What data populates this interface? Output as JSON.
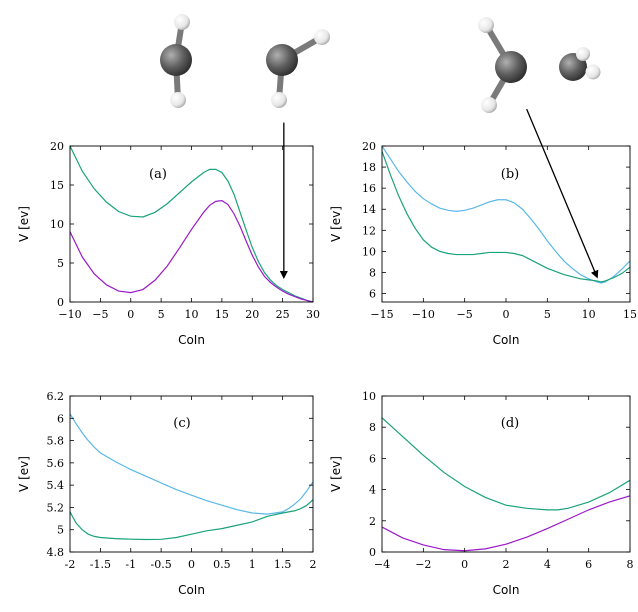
{
  "colors": {
    "green": "#1aa37a",
    "purple": "#9b19c9",
    "blue": "#5ab8e8",
    "atom_carbon": "#5f5f5f",
    "atom_hydrogen": "#f2f2f2"
  },
  "molecules": [
    {
      "name": "ethene-planar",
      "atoms": "carbon-carbon-hydrogen"
    },
    {
      "name": "ethene-twisted",
      "atoms": "carbon-carbon-hydrogen"
    }
  ],
  "chart_data": [
    {
      "type": "line",
      "label": "(a)",
      "xlabel": "CoIn",
      "ylabel": "V [ev]",
      "xlim": [
        -10,
        30
      ],
      "ylim": [
        0,
        20
      ],
      "xticks": [
        -10,
        -5,
        0,
        5,
        10,
        15,
        20,
        25,
        30
      ],
      "xtick_labels": [
        "−10",
        "−5",
        "0",
        "5",
        "10",
        "15",
        "20",
        "25",
        "30"
      ],
      "yticks": [
        0,
        5,
        10,
        15,
        20
      ],
      "ytick_labels": [
        "0",
        "5",
        "10",
        "15",
        "20"
      ],
      "arrow": {
        "from": [
          25.2,
          23.0
        ],
        "to": [
          25.2,
          3.2
        ]
      },
      "series": [
        {
          "color_key": "green",
          "x": [
            -10,
            -8,
            -6,
            -4,
            -2,
            0,
            2,
            4,
            6,
            8,
            10,
            12,
            13,
            14,
            15,
            16,
            17,
            18,
            19,
            20,
            21,
            22,
            23,
            24,
            25,
            26,
            27,
            28,
            29,
            30
          ],
          "y": [
            20.0,
            16.8,
            14.5,
            12.8,
            11.6,
            11.0,
            10.9,
            11.5,
            12.6,
            14.0,
            15.4,
            16.6,
            17.0,
            17.0,
            16.6,
            15.5,
            13.8,
            11.5,
            9.2,
            7.0,
            5.2,
            3.8,
            2.8,
            2.1,
            1.6,
            1.2,
            0.8,
            0.5,
            0.2,
            0.0
          ]
        },
        {
          "color_key": "purple",
          "x": [
            -10,
            -8,
            -6,
            -4,
            -2,
            0,
            2,
            4,
            6,
            8,
            10,
            12,
            13,
            14,
            15,
            16,
            17,
            18,
            19,
            20,
            21,
            22,
            23,
            24,
            25,
            26,
            27,
            28,
            29,
            30
          ],
          "y": [
            9.0,
            5.8,
            3.6,
            2.2,
            1.4,
            1.2,
            1.6,
            2.8,
            4.6,
            6.9,
            9.3,
            11.5,
            12.4,
            12.9,
            13.0,
            12.5,
            11.3,
            9.7,
            7.8,
            6.0,
            4.5,
            3.3,
            2.5,
            1.9,
            1.4,
            1.0,
            0.7,
            0.4,
            0.2,
            0.0
          ]
        }
      ]
    },
    {
      "type": "line",
      "label": "(b)",
      "xlabel": "CoIn",
      "ylabel": "V [ev]",
      "xlim": [
        -15,
        15
      ],
      "ylim": [
        5.2,
        20
      ],
      "xticks": [
        -15,
        -10,
        -5,
        0,
        5,
        10,
        15
      ],
      "xtick_labels": [
        "−15",
        "−10",
        "−5",
        "0",
        "5",
        "10",
        "15"
      ],
      "yticks": [
        6,
        8,
        10,
        12,
        14,
        16,
        18,
        20
      ],
      "ytick_labels": [
        "6",
        "8",
        "10",
        "12",
        "14",
        "16",
        "18",
        "20"
      ],
      "arrow": {
        "from": [
          2.5,
          23.5
        ],
        "to": [
          11.0,
          7.6
        ]
      },
      "series": [
        {
          "color_key": "blue",
          "x": [
            -15,
            -14,
            -13,
            -12,
            -11,
            -10,
            -9,
            -8,
            -7,
            -6,
            -5,
            -4,
            -3,
            -2,
            -1,
            0,
            1,
            2,
            3,
            4,
            5,
            6,
            7,
            8,
            9,
            10,
            11,
            11.5,
            12,
            13,
            14,
            15
          ],
          "y": [
            20.0,
            18.8,
            17.6,
            16.6,
            15.7,
            15.0,
            14.5,
            14.1,
            13.9,
            13.8,
            13.9,
            14.1,
            14.4,
            14.7,
            14.9,
            14.9,
            14.6,
            14.0,
            13.1,
            12.1,
            11.0,
            10.0,
            9.1,
            8.4,
            7.8,
            7.4,
            7.1,
            7.0,
            7.1,
            7.6,
            8.3,
            9.1
          ]
        },
        {
          "color_key": "green",
          "x": [
            -15,
            -14,
            -13,
            -12,
            -11,
            -10,
            -9,
            -8,
            -7,
            -6,
            -5,
            -4,
            -3,
            -2,
            -1,
            0,
            1,
            2,
            3,
            4,
            5,
            6,
            7,
            8,
            9,
            10,
            11,
            11.5,
            12,
            13,
            14,
            15
          ],
          "y": [
            19.5,
            17.3,
            15.3,
            13.6,
            12.2,
            11.1,
            10.4,
            10.0,
            9.8,
            9.7,
            9.7,
            9.7,
            9.8,
            9.9,
            9.9,
            9.9,
            9.8,
            9.6,
            9.2,
            8.8,
            8.4,
            8.1,
            7.8,
            7.6,
            7.4,
            7.3,
            7.2,
            7.1,
            7.2,
            7.5,
            7.9,
            8.5
          ]
        }
      ]
    },
    {
      "type": "line",
      "label": "(c)",
      "xlabel": "CoIn",
      "ylabel": "V [ev]",
      "xlim": [
        -2,
        2
      ],
      "ylim": [
        4.8,
        6.2
      ],
      "xticks": [
        -2,
        -1.5,
        -1,
        -0.5,
        0,
        0.5,
        1,
        1.5,
        2
      ],
      "xtick_labels": [
        "-2",
        "-1.5",
        "-1",
        "-0.5",
        "0",
        "0.5",
        "1",
        "1.5",
        "2"
      ],
      "yticks": [
        4.8,
        5.0,
        5.2,
        5.4,
        5.6,
        5.8,
        6.0,
        6.2
      ],
      "ytick_labels": [
        "4.8",
        "5",
        "5.2",
        "5.4",
        "5.6",
        "5.8",
        "6",
        "6.2"
      ],
      "series": [
        {
          "color_key": "blue",
          "x": [
            -2,
            -1.9,
            -1.8,
            -1.7,
            -1.6,
            -1.5,
            -1.25,
            -1,
            -0.75,
            -0.5,
            -0.25,
            0,
            0.25,
            0.5,
            0.75,
            1,
            1.25,
            1.5,
            1.6,
            1.7,
            1.8,
            1.9,
            2
          ],
          "y": [
            6.04,
            5.95,
            5.87,
            5.8,
            5.74,
            5.69,
            5.61,
            5.54,
            5.48,
            5.42,
            5.36,
            5.31,
            5.26,
            5.22,
            5.18,
            5.15,
            5.14,
            5.16,
            5.19,
            5.23,
            5.28,
            5.35,
            5.43
          ]
        },
        {
          "color_key": "green",
          "x": [
            -2,
            -1.9,
            -1.8,
            -1.7,
            -1.6,
            -1.5,
            -1.25,
            -1,
            -0.75,
            -0.5,
            -0.25,
            0,
            0.25,
            0.5,
            0.75,
            1,
            1.25,
            1.5,
            1.6,
            1.7,
            1.8,
            1.9,
            2
          ],
          "y": [
            5.16,
            5.06,
            5.0,
            4.96,
            4.94,
            4.93,
            4.92,
            4.915,
            4.912,
            4.914,
            4.93,
            4.96,
            4.99,
            5.01,
            5.04,
            5.07,
            5.12,
            5.15,
            5.16,
            5.17,
            5.19,
            5.22,
            5.27
          ]
        }
      ]
    },
    {
      "type": "line",
      "label": "(d)",
      "xlabel": "CoIn",
      "ylabel": "V [ev]",
      "xlim": [
        -4,
        8
      ],
      "ylim": [
        0,
        10
      ],
      "xticks": [
        -4,
        -2,
        0,
        2,
        4,
        6,
        8
      ],
      "xtick_labels": [
        "−4",
        "−2",
        "0",
        "2",
        "4",
        "6",
        "8"
      ],
      "yticks": [
        0,
        2,
        4,
        6,
        8,
        10
      ],
      "ytick_labels": [
        "0",
        "2",
        "4",
        "6",
        "8",
        "10"
      ],
      "series": [
        {
          "color_key": "green",
          "x": [
            -4,
            -3,
            -2,
            -1,
            0,
            1,
            2,
            3,
            4,
            4.5,
            5,
            6,
            7,
            8
          ],
          "y": [
            8.6,
            7.4,
            6.2,
            5.1,
            4.2,
            3.5,
            3.0,
            2.8,
            2.7,
            2.7,
            2.8,
            3.2,
            3.8,
            4.6
          ]
        },
        {
          "color_key": "purple",
          "x": [
            -4,
            -3,
            -2,
            -1,
            0,
            1,
            2,
            3,
            4,
            5,
            6,
            7,
            8
          ],
          "y": [
            1.6,
            0.9,
            0.45,
            0.15,
            0.08,
            0.2,
            0.5,
            0.95,
            1.5,
            2.1,
            2.7,
            3.2,
            3.6
          ]
        }
      ]
    }
  ]
}
